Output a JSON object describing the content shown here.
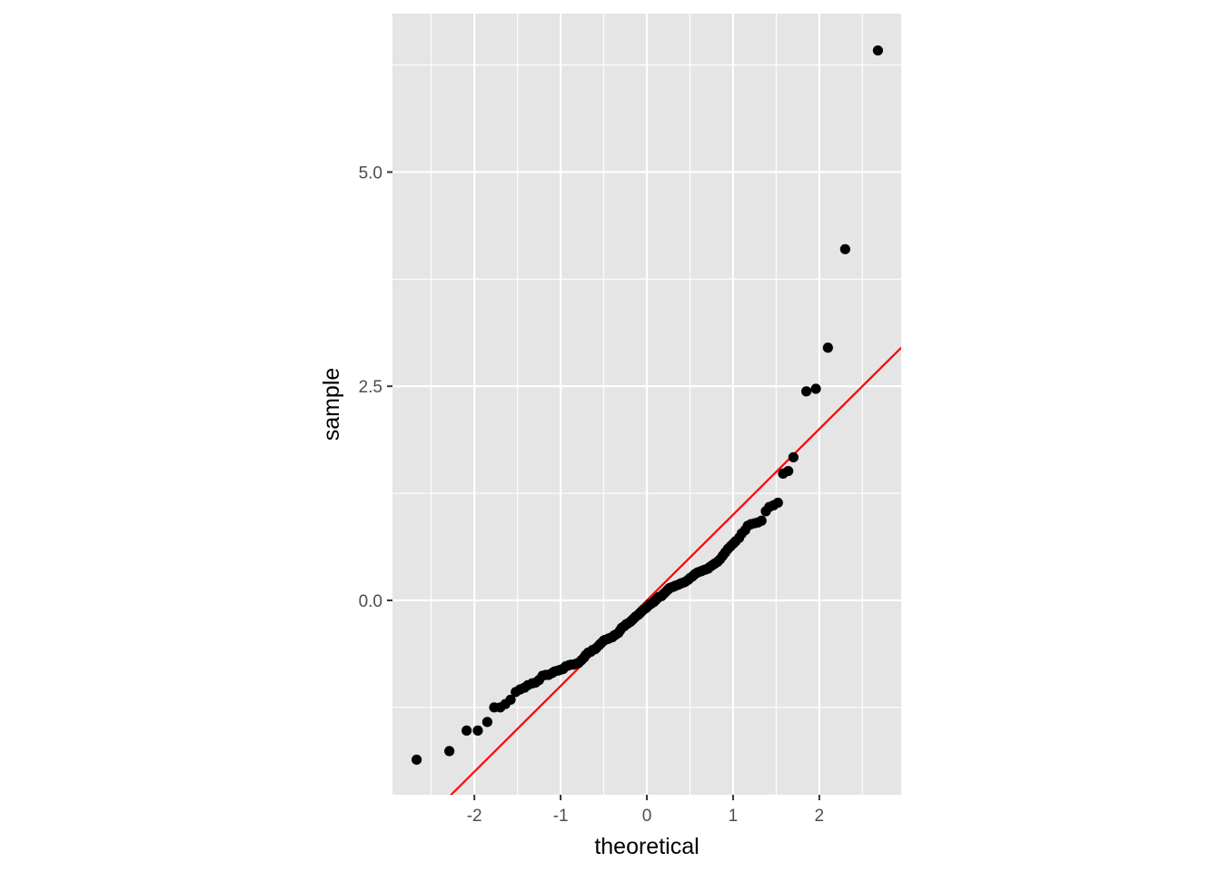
{
  "chart_data": {
    "type": "scatter",
    "title": "",
    "xlabel": "theoretical",
    "ylabel": "sample",
    "xlim": [
      -2.95,
      2.95
    ],
    "ylim": [
      -2.27,
      6.85
    ],
    "x_ticks": [
      -2,
      -1,
      0,
      1,
      2
    ],
    "x_tick_labels": [
      "-2",
      "-1",
      "0",
      "1",
      "2"
    ],
    "y_ticks": [
      0,
      2.5,
      5
    ],
    "y_tick_labels": [
      "0.0",
      "2.5",
      "5.0"
    ],
    "grid": true,
    "reference_line": {
      "intercept": 0,
      "slope": 1,
      "color": "#ff0000"
    },
    "point_color": "#000000",
    "panel_background": "#e5e5e5",
    "points": [
      [
        -2.67,
        -1.86
      ],
      [
        -2.29,
        -1.76
      ],
      [
        -2.09,
        -1.52
      ],
      [
        -1.96,
        -1.52
      ],
      [
        -1.85,
        -1.42
      ],
      [
        -1.77,
        -1.25
      ],
      [
        -1.7,
        -1.25
      ],
      [
        -1.64,
        -1.21
      ],
      [
        -1.58,
        -1.16
      ],
      [
        -1.52,
        -1.07
      ],
      [
        -1.47,
        -1.04
      ],
      [
        -1.42,
        -1.02
      ],
      [
        -1.38,
        -0.99
      ],
      [
        -1.33,
        -0.97
      ],
      [
        -1.29,
        -0.96
      ],
      [
        -1.25,
        -0.93
      ],
      [
        -1.21,
        -0.88
      ],
      [
        -1.17,
        -0.87
      ],
      [
        -1.14,
        -0.87
      ],
      [
        -1.1,
        -0.85
      ],
      [
        -1.07,
        -0.83
      ],
      [
        -1.03,
        -0.82
      ],
      [
        -1.0,
        -0.81
      ],
      [
        -0.97,
        -0.8
      ],
      [
        -0.94,
        -0.77
      ],
      [
        -0.91,
        -0.76
      ],
      [
        -0.88,
        -0.75
      ],
      [
        -0.85,
        -0.75
      ],
      [
        -0.82,
        -0.74
      ],
      [
        -0.79,
        -0.73
      ],
      [
        -0.76,
        -0.7
      ],
      [
        -0.73,
        -0.67
      ],
      [
        -0.71,
        -0.64
      ],
      [
        -0.68,
        -0.61
      ],
      [
        -0.65,
        -0.6
      ],
      [
        -0.63,
        -0.58
      ],
      [
        -0.6,
        -0.57
      ],
      [
        -0.58,
        -0.55
      ],
      [
        -0.55,
        -0.52
      ],
      [
        -0.53,
        -0.5
      ],
      [
        -0.5,
        -0.47
      ],
      [
        -0.48,
        -0.46
      ],
      [
        -0.45,
        -0.45
      ],
      [
        -0.43,
        -0.44
      ],
      [
        -0.4,
        -0.43
      ],
      [
        -0.38,
        -0.41
      ],
      [
        -0.36,
        -0.4
      ],
      [
        -0.33,
        -0.38
      ],
      [
        -0.31,
        -0.35
      ],
      [
        -0.29,
        -0.32
      ],
      [
        -0.26,
        -0.3
      ],
      [
        -0.24,
        -0.28
      ],
      [
        -0.22,
        -0.27
      ],
      [
        -0.19,
        -0.25
      ],
      [
        -0.17,
        -0.23
      ],
      [
        -0.15,
        -0.21
      ],
      [
        -0.13,
        -0.19
      ],
      [
        -0.1,
        -0.17
      ],
      [
        -0.08,
        -0.15
      ],
      [
        -0.06,
        -0.13
      ],
      [
        -0.04,
        -0.11
      ],
      [
        -0.01,
        -0.09
      ],
      [
        0.01,
        -0.07
      ],
      [
        0.03,
        -0.05
      ],
      [
        0.05,
        -0.04
      ],
      [
        0.08,
        -0.02
      ],
      [
        0.1,
        0.0
      ],
      [
        0.12,
        0.02
      ],
      [
        0.14,
        0.04
      ],
      [
        0.17,
        0.05
      ],
      [
        0.19,
        0.07
      ],
      [
        0.21,
        0.09
      ],
      [
        0.24,
        0.12
      ],
      [
        0.26,
        0.14
      ],
      [
        0.28,
        0.15
      ],
      [
        0.31,
        0.16
      ],
      [
        0.33,
        0.17
      ],
      [
        0.36,
        0.18
      ],
      [
        0.38,
        0.19
      ],
      [
        0.4,
        0.2
      ],
      [
        0.43,
        0.21
      ],
      [
        0.45,
        0.22
      ],
      [
        0.48,
        0.24
      ],
      [
        0.5,
        0.26
      ],
      [
        0.53,
        0.28
      ],
      [
        0.55,
        0.3
      ],
      [
        0.58,
        0.32
      ],
      [
        0.6,
        0.33
      ],
      [
        0.63,
        0.34
      ],
      [
        0.65,
        0.35
      ],
      [
        0.68,
        0.36
      ],
      [
        0.71,
        0.37
      ],
      [
        0.73,
        0.39
      ],
      [
        0.76,
        0.41
      ],
      [
        0.79,
        0.43
      ],
      [
        0.82,
        0.45
      ],
      [
        0.85,
        0.48
      ],
      [
        0.88,
        0.52
      ],
      [
        0.91,
        0.56
      ],
      [
        0.94,
        0.6
      ],
      [
        0.97,
        0.63
      ],
      [
        1.0,
        0.66
      ],
      [
        1.03,
        0.69
      ],
      [
        1.07,
        0.73
      ],
      [
        1.1,
        0.78
      ],
      [
        1.14,
        0.82
      ],
      [
        1.17,
        0.87
      ],
      [
        1.21,
        0.89
      ],
      [
        1.25,
        0.9
      ],
      [
        1.29,
        0.91
      ],
      [
        1.33,
        0.93
      ],
      [
        1.38,
        1.04
      ],
      [
        1.42,
        1.09
      ],
      [
        1.47,
        1.11
      ],
      [
        1.52,
        1.14
      ],
      [
        1.58,
        1.48
      ],
      [
        1.64,
        1.51
      ],
      [
        1.7,
        1.67
      ],
      [
        1.85,
        2.44
      ],
      [
        1.96,
        2.47
      ],
      [
        2.1,
        2.95
      ],
      [
        2.3,
        4.1
      ],
      [
        2.68,
        6.42
      ]
    ]
  }
}
